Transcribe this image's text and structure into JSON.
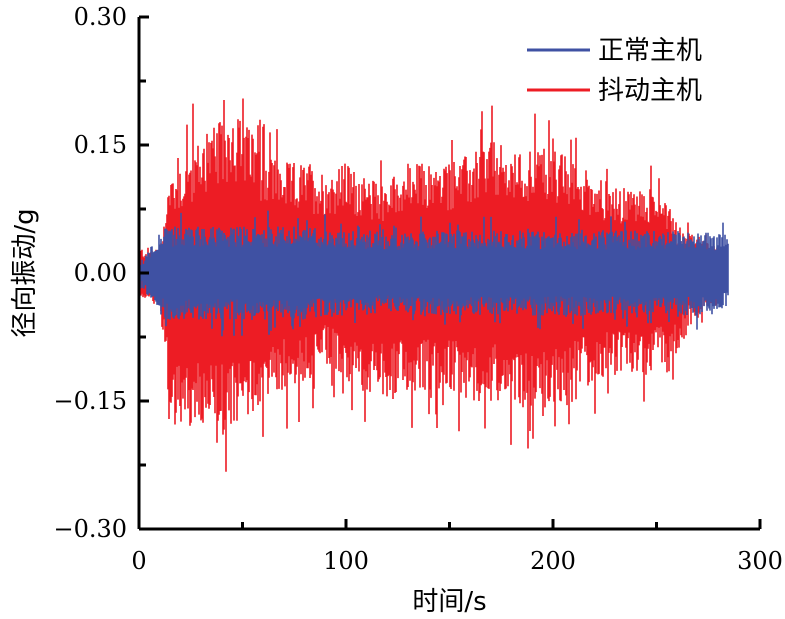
{
  "chart_data": {
    "type": "area",
    "title": "",
    "xlabel": "时间/s",
    "ylabel": "径向振动/g",
    "xlim": [
      0,
      300
    ],
    "ylim": [
      -0.3,
      0.3
    ],
    "x_ticks": [
      0,
      100,
      200,
      300
    ],
    "x_tick_labels": [
      "0",
      "100",
      "200",
      "300"
    ],
    "y_ticks": [
      0.3,
      0.15,
      0.0,
      -0.15,
      -0.3
    ],
    "y_tick_labels": [
      "0.30",
      "0.15",
      "0.00",
      "−0.15",
      "−0.30"
    ],
    "grid": false,
    "legend_position": "top-right",
    "series": [
      {
        "name": "抖动主机",
        "color": "#ED1C24",
        "x": [
          0,
          10,
          15,
          20,
          30,
          40,
          45,
          50,
          60,
          70,
          80,
          90,
          100,
          110,
          120,
          130,
          140,
          150,
          160,
          170,
          180,
          190,
          200,
          210,
          220,
          230,
          240,
          250,
          255,
          260,
          265,
          270,
          280
        ],
        "upper": [
          0.03,
          0.03,
          0.12,
          0.13,
          0.16,
          0.18,
          0.2,
          0.18,
          0.15,
          0.13,
          0.13,
          0.12,
          0.13,
          0.11,
          0.11,
          0.13,
          0.13,
          0.13,
          0.14,
          0.16,
          0.14,
          0.15,
          0.15,
          0.13,
          0.12,
          0.1,
          0.1,
          0.1,
          0.09,
          0.06,
          0.05,
          0.04,
          0.03
        ],
        "lower": [
          -0.03,
          -0.03,
          -0.18,
          -0.18,
          -0.19,
          -0.19,
          -0.19,
          -0.18,
          -0.15,
          -0.14,
          -0.13,
          -0.11,
          -0.13,
          -0.14,
          -0.15,
          -0.14,
          -0.14,
          -0.14,
          -0.15,
          -0.15,
          -0.15,
          -0.16,
          -0.16,
          -0.14,
          -0.13,
          -0.12,
          -0.13,
          -0.11,
          -0.12,
          -0.1,
          -0.07,
          -0.05,
          -0.03
        ]
      },
      {
        "name": "正常主机",
        "color": "#3F51A3",
        "x": [
          0,
          10,
          15,
          30,
          50,
          80,
          100,
          110,
          117,
          120,
          140,
          160,
          180,
          200,
          220,
          240,
          260,
          270,
          285
        ],
        "upper": [
          0.01,
          0.05,
          0.055,
          0.055,
          0.055,
          0.055,
          0.05,
          0.05,
          0.055,
          0.045,
          0.05,
          0.05,
          0.05,
          0.05,
          0.05,
          0.05,
          0.05,
          0.05,
          0.045
        ],
        "lower": [
          -0.01,
          -0.05,
          -0.055,
          -0.055,
          -0.055,
          -0.055,
          -0.05,
          -0.05,
          -0.04,
          -0.045,
          -0.05,
          -0.05,
          -0.05,
          -0.05,
          -0.05,
          -0.05,
          -0.05,
          -0.05,
          -0.04
        ]
      }
    ]
  }
}
